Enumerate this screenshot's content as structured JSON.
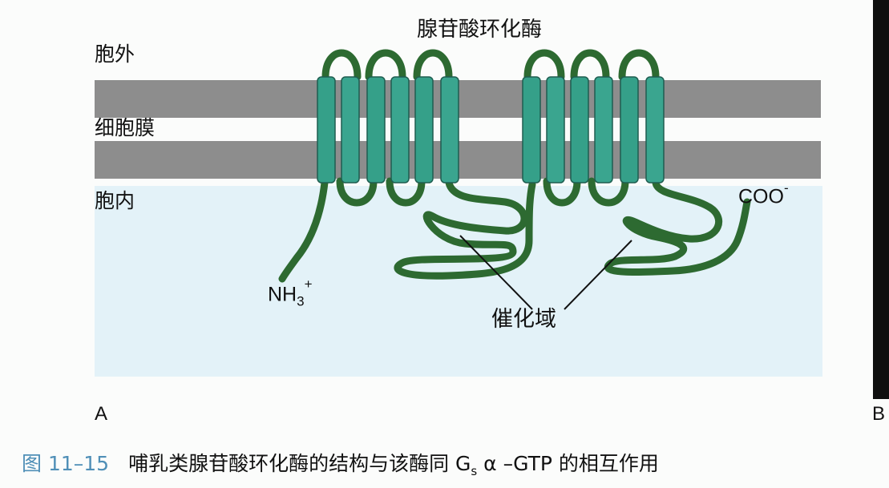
{
  "diagram": {
    "title": "腺苷酸环化酶",
    "labels": {
      "extracellular": "胞外",
      "membrane": "细胞膜",
      "intracellular": "胞内",
      "c_terminus": "COO",
      "c_terminus_charge": "-",
      "n_terminus": "NH",
      "n_terminus_subscript": "3",
      "n_terminus_charge": "+",
      "catalytic_domain": "催化域"
    },
    "panel_labels": {
      "left": "A",
      "right": "B"
    },
    "colors": {
      "membrane": "#8d8d8d",
      "helix": "#35a089",
      "chain": "#2d6a31",
      "cytoplasm": "#e3f2f8"
    }
  },
  "caption": {
    "number": "图 11–15",
    "text_before": "哺乳类腺苷酸环化酶的结构与该酶同 G",
    "subscript": "s",
    "text_after": " α –GTP 的相互作用"
  }
}
